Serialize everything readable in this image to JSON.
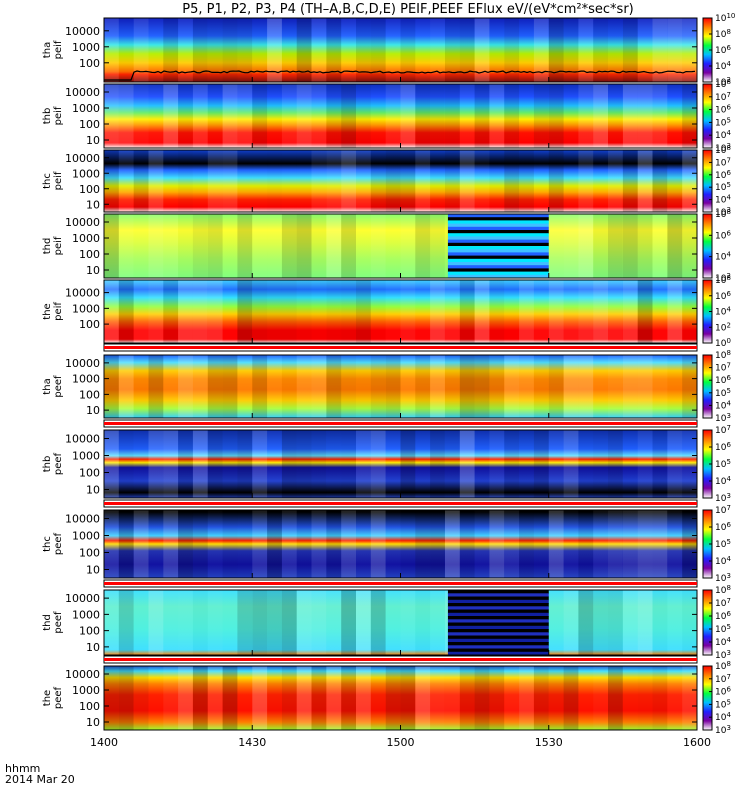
{
  "chart_data": {
    "type": "heatmap",
    "title": "P5, P1, P2, P3, P4 (TH–A,B,C,D,E) PEIF,PEEF EFlux eV/(eV*cm²*sec*sr)",
    "x_label_line1": "hhmm",
    "x_label_line2": "2014 Mar 20",
    "x_ticks": [
      "1400",
      "1430",
      "1500",
      "1530",
      "1600"
    ],
    "x_range": [
      "1400",
      "1600"
    ],
    "panels": [
      {
        "label_top": "tha",
        "label_bottom": "peif",
        "y_scale": "log",
        "y_ticks": [
          "100",
          "1000",
          "10000"
        ],
        "colorbar_ticks": [
          "10^2",
          "10^4",
          "10^6",
          "10^8",
          "10^10"
        ],
        "bands": [
          [
            "#7f1010",
            0.0
          ],
          [
            "#ff2600",
            0.12
          ],
          [
            "#ff6a00",
            0.16
          ],
          [
            "#ffcc00",
            0.3
          ],
          [
            "#b8f000",
            0.44
          ],
          [
            "#38e8e8",
            0.58
          ],
          [
            "#2060ff",
            0.72
          ],
          [
            "#1020c0",
            1.0
          ]
        ],
        "has_line": true
      },
      {
        "label_top": "thb",
        "label_bottom": "peif",
        "y_scale": "log",
        "y_ticks": [
          "10",
          "100",
          "1000",
          "10000"
        ],
        "colorbar_ticks": [
          "10^3",
          "10^4",
          "10^5",
          "10^6",
          "10^7",
          "10^8"
        ],
        "bands": [
          [
            "#ffffff",
            0.0
          ],
          [
            "#ff0000",
            0.08
          ],
          [
            "#ff1000",
            0.24
          ],
          [
            "#ff9900",
            0.36
          ],
          [
            "#ffee00",
            0.45
          ],
          [
            "#66ee66",
            0.55
          ],
          [
            "#20c0ff",
            0.66
          ],
          [
            "#2050ff",
            0.8
          ],
          [
            "#1030c0",
            1.0
          ]
        ]
      },
      {
        "label_top": "thc",
        "label_bottom": "peif",
        "y_scale": "log",
        "y_ticks": [
          "10",
          "100",
          "1000",
          "10000"
        ],
        "colorbar_ticks": [
          "10^3",
          "10^4",
          "10^5",
          "10^6",
          "10^7",
          "10^8"
        ],
        "bands": [
          [
            "#ffffff",
            0.0
          ],
          [
            "#ff0000",
            0.08
          ],
          [
            "#ff2000",
            0.2
          ],
          [
            "#ffaa00",
            0.32
          ],
          [
            "#e0f000",
            0.42
          ],
          [
            "#40e0ff",
            0.55
          ],
          [
            "#2060ff",
            0.68
          ],
          [
            "#000000",
            0.78
          ],
          [
            "#1040d0",
            1.0
          ]
        ]
      },
      {
        "label_top": "thd",
        "label_bottom": "peif",
        "y_scale": "log",
        "y_ticks": [
          "10",
          "100",
          "1000",
          "10000"
        ],
        "colorbar_ticks": [
          "10^2",
          "10^4",
          "10^6",
          "10^8"
        ],
        "bands": [
          [
            "#80ff80",
            0.0
          ],
          [
            "#aaff60",
            0.3
          ],
          [
            "#ddff40",
            0.55
          ],
          [
            "#ffff30",
            0.75
          ],
          [
            "#88ff70",
            1.0
          ]
        ],
        "gap_colors": [
          "#40c0ff",
          "#00e8ff",
          "#000000",
          "#2060ff"
        ]
      },
      {
        "label_top": "the",
        "label_bottom": "peif",
        "y_scale": "log",
        "y_ticks": [
          "100",
          "1000",
          "10000"
        ],
        "colorbar_ticks": [
          "10^0",
          "10^2",
          "10^4",
          "10^6",
          "10^8"
        ],
        "bands": [
          [
            "#ffffff",
            0.0
          ],
          [
            "#ff0000",
            0.06
          ],
          [
            "#ff0000",
            0.2
          ],
          [
            "#ff6000",
            0.34
          ],
          [
            "#ffd000",
            0.46
          ],
          [
            "#90ff40",
            0.58
          ],
          [
            "#30e0ff",
            0.72
          ],
          [
            "#2070ff",
            0.85
          ],
          [
            "#40d0ff",
            1.0
          ]
        ]
      },
      {
        "label_top": "tha",
        "label_bottom": "peef",
        "y_scale": "log",
        "y_ticks": [
          "10",
          "100",
          "1000",
          "10000"
        ],
        "colorbar_ticks": [
          "10^3",
          "10^4",
          "10^5",
          "10^6",
          "10^7",
          "10^8"
        ],
        "bands": [
          [
            "#30d0ff",
            0.0
          ],
          [
            "#aaff40",
            0.15
          ],
          [
            "#ffcc00",
            0.28
          ],
          [
            "#ff7a00",
            0.45
          ],
          [
            "#ff8a00",
            0.62
          ],
          [
            "#ffcc00",
            0.75
          ],
          [
            "#50e0ff",
            0.88
          ],
          [
            "#2060ff",
            1.0
          ]
        ]
      },
      {
        "label_top": "thb",
        "label_bottom": "peef",
        "y_scale": "log",
        "y_ticks": [
          "10",
          "100",
          "1000",
          "10000"
        ],
        "colorbar_ticks": [
          "10^3",
          "10^4",
          "10^5",
          "10^6",
          "10^7"
        ],
        "bands": [
          [
            "#2040c0",
            0.0
          ],
          [
            "#000000",
            0.08
          ],
          [
            "#2040d0",
            0.25
          ],
          [
            "#1010a0",
            0.45
          ],
          [
            "#ffee00",
            0.52
          ],
          [
            "#ff2000",
            0.57
          ],
          [
            "#60e0ff",
            0.62
          ],
          [
            "#2060ff",
            0.72
          ],
          [
            "#1030b0",
            1.0
          ]
        ]
      },
      {
        "label_top": "thc",
        "label_bottom": "peef",
        "y_scale": "log",
        "y_ticks": [
          "10",
          "100",
          "1000",
          "10000"
        ],
        "colorbar_ticks": [
          "10^3",
          "10^4",
          "10^5",
          "10^6",
          "10^7"
        ],
        "bands": [
          [
            "#2040c0",
            0.0
          ],
          [
            "#1010a0",
            0.2
          ],
          [
            "#2030b0",
            0.4
          ],
          [
            "#ffdd00",
            0.5
          ],
          [
            "#ff2000",
            0.55
          ],
          [
            "#40d0ff",
            0.62
          ],
          [
            "#2050e0",
            0.75
          ],
          [
            "#000000",
            0.97
          ]
        ]
      },
      {
        "label_top": "thd",
        "label_bottom": "peef",
        "y_scale": "log",
        "y_ticks": [
          "10",
          "100",
          "1000",
          "10000"
        ],
        "colorbar_ticks": [
          "10^3",
          "10^4",
          "10^5",
          "10^6",
          "10^7",
          "10^8"
        ],
        "bands": [
          [
            "#ff8000",
            0.0
          ],
          [
            "#40e0ff",
            0.08
          ],
          [
            "#50f0e0",
            0.4
          ],
          [
            "#60f0d0",
            0.75
          ],
          [
            "#40e0ff",
            1.0
          ]
        ],
        "gap_colors": [
          "#000000",
          "#1020a0",
          "#000000",
          "#2030c0"
        ]
      },
      {
        "label_top": "the",
        "label_bottom": "peef",
        "y_scale": "log",
        "y_ticks": [
          "10",
          "100",
          "1000",
          "10000"
        ],
        "colorbar_ticks": [
          "10^3",
          "10^4",
          "10^5",
          "10^6",
          "10^7",
          "10^8"
        ],
        "bands": [
          [
            "#a0ff30",
            0.0
          ],
          [
            "#ff8000",
            0.12
          ],
          [
            "#ff1000",
            0.3
          ],
          [
            "#ff2000",
            0.55
          ],
          [
            "#ff8000",
            0.72
          ],
          [
            "#ffdd00",
            0.82
          ],
          [
            "#40e0ff",
            0.92
          ],
          [
            "#2050d0",
            1.0
          ]
        ]
      }
    ]
  }
}
